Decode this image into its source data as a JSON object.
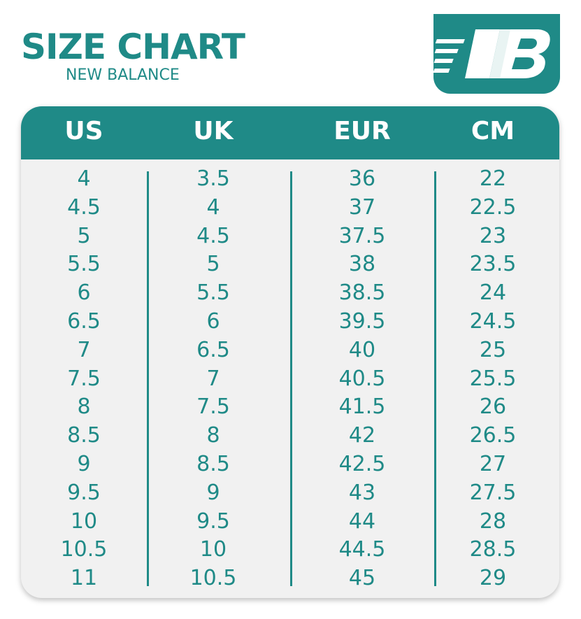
{
  "header": {
    "title": "SIZE CHART",
    "subtitle": "NEW BALANCE"
  },
  "table": {
    "columns": [
      "US",
      "UK",
      "EUR",
      "CM"
    ],
    "rows": [
      [
        "4",
        "3.5",
        "36",
        "22"
      ],
      [
        "4.5",
        "4",
        "37",
        "22.5"
      ],
      [
        "5",
        "4.5",
        "37.5",
        "23"
      ],
      [
        "5.5",
        "5",
        "38",
        "23.5"
      ],
      [
        "6",
        "5.5",
        "38.5",
        "24"
      ],
      [
        "6.5",
        "6",
        "39.5",
        "24.5"
      ],
      [
        "7",
        "6.5",
        "40",
        "25"
      ],
      [
        "7.5",
        "7",
        "40.5",
        "25.5"
      ],
      [
        "8",
        "7.5",
        "41.5",
        "26"
      ],
      [
        "8.5",
        "8",
        "42",
        "26.5"
      ],
      [
        "9",
        "8.5",
        "42.5",
        "27"
      ],
      [
        "9.5",
        "9",
        "43",
        "27.5"
      ],
      [
        "10",
        "9.5",
        "44",
        "28"
      ],
      [
        "10.5",
        "10",
        "44.5",
        "28.5"
      ],
      [
        "11",
        "10.5",
        "45",
        "29"
      ]
    ]
  }
}
